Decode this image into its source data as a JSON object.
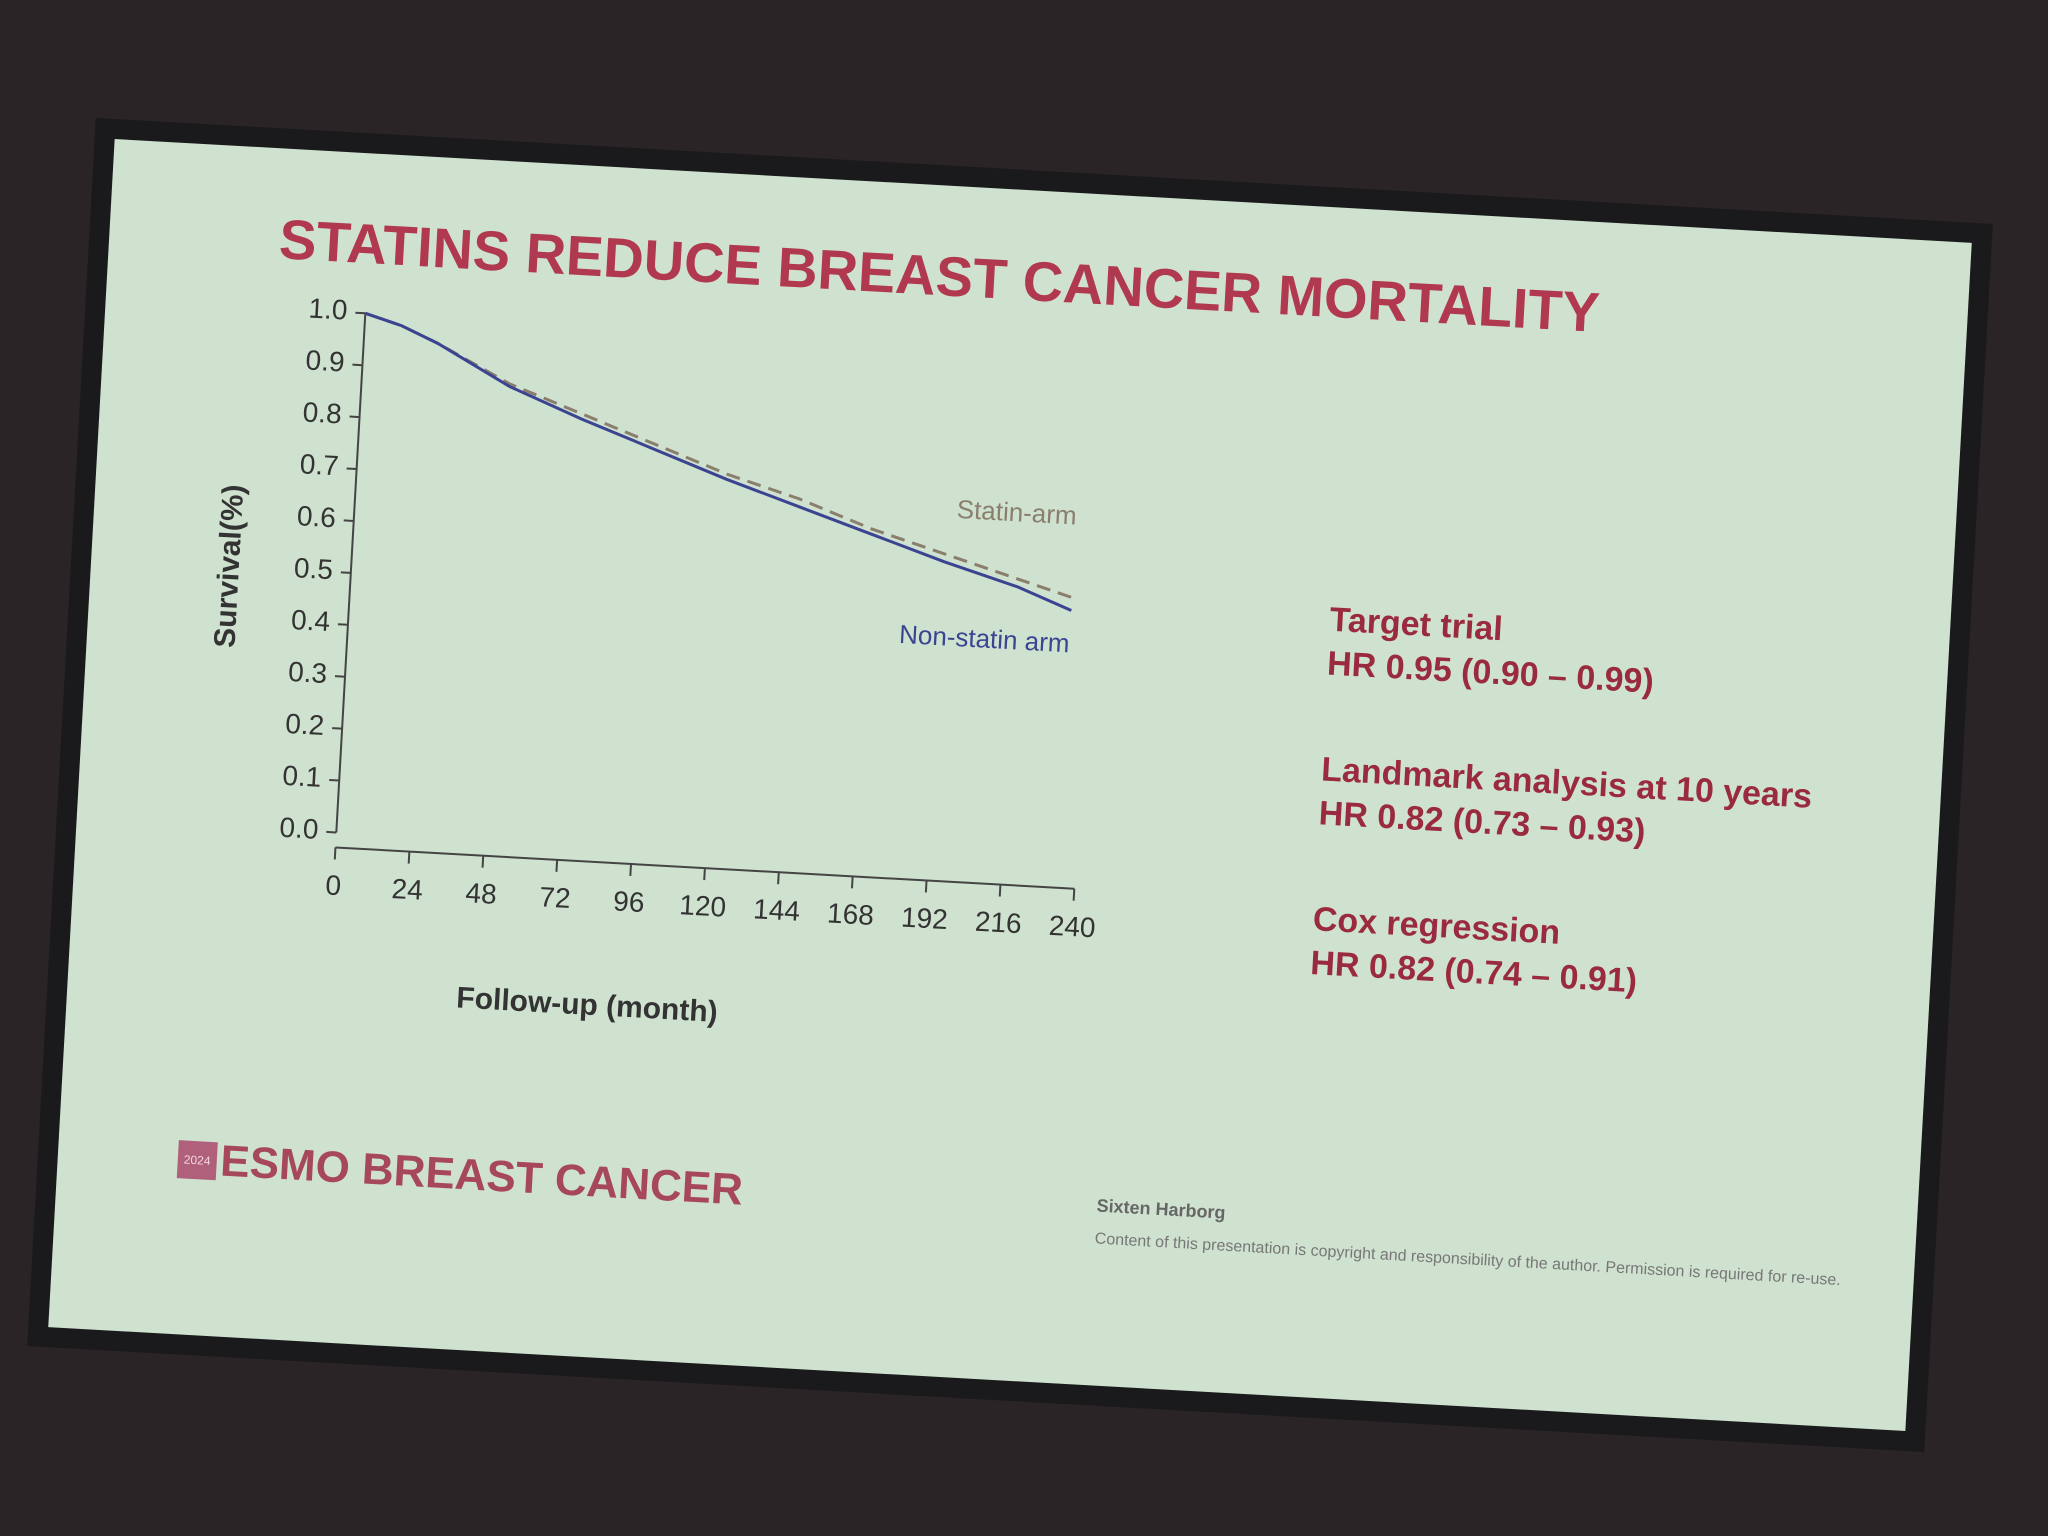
{
  "chart_data": {
    "type": "line",
    "title": "STATINS REDUCE BREAST CANCER MORTALITY",
    "x_label": "Follow-up (month)",
    "y_label": "Survival(%)",
    "x": [
      0,
      12,
      24,
      48,
      72,
      96,
      120,
      144,
      168,
      192,
      216,
      234
    ],
    "series": [
      {
        "name": "Statin-arm",
        "color": "#8a7e6c",
        "dashed": true,
        "values": [
          1.0,
          0.98,
          0.95,
          0.88,
          0.83,
          0.78,
          0.73,
          0.69,
          0.64,
          0.6,
          0.56,
          0.53
        ]
      },
      {
        "name": "Non-statin arm",
        "color": "#3b4490",
        "dashed": false,
        "values": [
          1.0,
          0.98,
          0.95,
          0.875,
          0.82,
          0.77,
          0.72,
          0.675,
          0.63,
          0.585,
          0.545,
          0.505
        ]
      }
    ],
    "xlim": [
      0,
      240
    ],
    "xticks": [
      0,
      24,
      48,
      72,
      96,
      120,
      144,
      168,
      192,
      216,
      240
    ],
    "ylim": [
      0,
      1
    ],
    "yticks": [
      {
        "value": 0,
        "label": "0.0"
      },
      0.1,
      0.2,
      0.3,
      0.4,
      0.5,
      0.6,
      0.7,
      0.8,
      0.9,
      {
        "value": 1,
        "label": "1.0"
      }
    ],
    "grid": false
  },
  "results": [
    {
      "heading": "Target trial",
      "hr": "HR 0.95 (0.90 – 0.99)"
    },
    {
      "heading": "Landmark analysis at 10 years",
      "hr": "HR 0.82 (0.73 – 0.93)"
    },
    {
      "heading": "Cox regression",
      "hr": "HR 0.82 (0.74 – 0.91)"
    }
  ],
  "footer": {
    "year": "2024",
    "brand": "ESMO BREAST CANCER",
    "author": "Sixten Harborg",
    "notice": "Content of this presentation is copyright and responsibility of the author. Permission is required for re-use."
  }
}
